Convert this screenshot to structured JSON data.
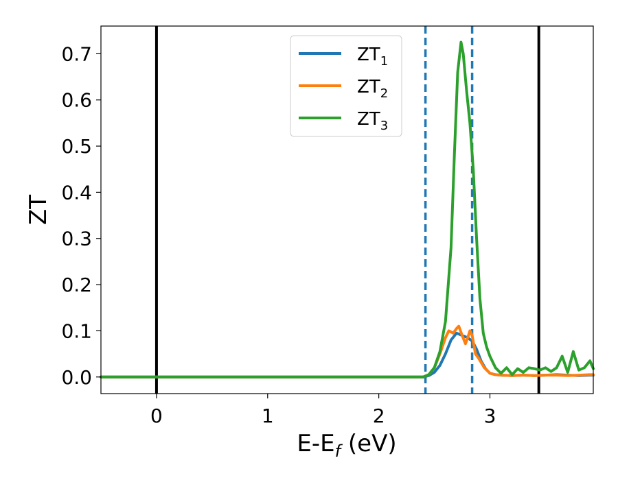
{
  "chart_data": {
    "type": "line",
    "title": "",
    "xlabel": "E-E",
    "xlabel_sub": "f",
    "xlabel_unit": " (eV)",
    "ylabel": "ZT",
    "xlim": [
      -0.5,
      3.93
    ],
    "ylim": [
      -0.036,
      0.76
    ],
    "grid": false,
    "legend_position": "top-center",
    "xticks": [
      0,
      1,
      2,
      3
    ],
    "xtick_labels": [
      "0",
      "1",
      "2",
      "3"
    ],
    "yticks": [
      0.0,
      0.1,
      0.2,
      0.3,
      0.4,
      0.5,
      0.6,
      0.7
    ],
    "ytick_labels": [
      "0.0",
      "0.1",
      "0.2",
      "0.3",
      "0.4",
      "0.5",
      "0.6",
      "0.7"
    ],
    "vertical_lines": [
      {
        "x": 0.0,
        "style": "solid",
        "color": "#000000"
      },
      {
        "x": 3.44,
        "style": "solid",
        "color": "#000000"
      },
      {
        "x": 2.42,
        "style": "dashed",
        "color": "#1f77b4"
      },
      {
        "x": 2.84,
        "style": "dashed",
        "color": "#1f77b4"
      }
    ],
    "series": [
      {
        "name": "ZT",
        "sub": "1",
        "color": "#1f77b4",
        "x": [
          -0.5,
          2.4,
          2.45,
          2.5,
          2.55,
          2.6,
          2.65,
          2.7,
          2.75,
          2.8,
          2.84,
          2.88,
          2.92,
          2.96,
          3.0,
          3.05,
          3.1,
          3.2,
          3.3,
          3.4,
          3.5,
          3.6,
          3.7,
          3.8,
          3.9,
          3.93
        ],
        "y": [
          0.0,
          0.0,
          0.003,
          0.01,
          0.025,
          0.05,
          0.08,
          0.095,
          0.09,
          0.085,
          0.078,
          0.06,
          0.035,
          0.018,
          0.008,
          0.005,
          0.004,
          0.003,
          0.004,
          0.003,
          0.004,
          0.005,
          0.004,
          0.003,
          0.004,
          0.004
        ]
      },
      {
        "name": "ZT",
        "sub": "2",
        "color": "#ff7f0e",
        "x": [
          -0.5,
          2.4,
          2.45,
          2.5,
          2.55,
          2.6,
          2.63,
          2.67,
          2.7,
          2.72,
          2.75,
          2.78,
          2.8,
          2.82,
          2.84,
          2.87,
          2.9,
          2.95,
          3.0,
          3.05,
          3.1,
          3.2,
          3.3,
          3.4,
          3.5,
          3.6,
          3.7,
          3.8,
          3.9,
          3.93
        ],
        "y": [
          0.0,
          0.0,
          0.005,
          0.02,
          0.05,
          0.085,
          0.1,
          0.095,
          0.105,
          0.11,
          0.09,
          0.072,
          0.085,
          0.1,
          0.09,
          0.05,
          0.04,
          0.02,
          0.008,
          0.005,
          0.004,
          0.003,
          0.004,
          0.003,
          0.004,
          0.004,
          0.003,
          0.004,
          0.005,
          0.005
        ]
      },
      {
        "name": "ZT",
        "sub": "3",
        "color": "#2ca02c",
        "x": [
          -0.5,
          2.4,
          2.45,
          2.5,
          2.55,
          2.6,
          2.65,
          2.68,
          2.71,
          2.74,
          2.76,
          2.79,
          2.82,
          2.85,
          2.88,
          2.91,
          2.94,
          2.97,
          3.0,
          3.05,
          3.1,
          3.15,
          3.2,
          3.25,
          3.3,
          3.35,
          3.4,
          3.45,
          3.5,
          3.55,
          3.6,
          3.65,
          3.7,
          3.75,
          3.8,
          3.85,
          3.9,
          3.93
        ],
        "y": [
          0.0,
          0.0,
          0.005,
          0.02,
          0.055,
          0.12,
          0.28,
          0.48,
          0.66,
          0.725,
          0.7,
          0.62,
          0.55,
          0.45,
          0.3,
          0.17,
          0.095,
          0.065,
          0.045,
          0.02,
          0.008,
          0.02,
          0.005,
          0.018,
          0.01,
          0.02,
          0.018,
          0.015,
          0.02,
          0.012,
          0.02,
          0.045,
          0.01,
          0.055,
          0.015,
          0.02,
          0.035,
          0.018
        ]
      }
    ]
  }
}
